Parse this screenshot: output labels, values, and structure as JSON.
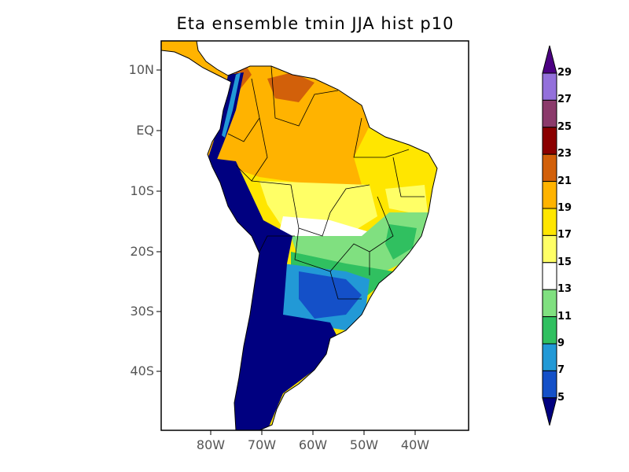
{
  "title": "Eta ensemble tmin JJA hist p10",
  "map": {
    "lat_labels": [
      "10N",
      "EQ",
      "10S",
      "20S",
      "30S",
      "40S"
    ],
    "lon_labels": [
      "80W",
      "70W",
      "60W",
      "50W",
      "40W"
    ]
  },
  "colorbar": {
    "labels": [
      "29",
      "27",
      "25",
      "23",
      "21",
      "19",
      "17",
      "15",
      "13",
      "11",
      "9",
      "7",
      "5"
    ],
    "colors_top_to_bottom": [
      "#4b0082",
      "#9370db",
      "#8b3a6b",
      "#8b0000",
      "#d2600a",
      "#ffb300",
      "#ffe600",
      "#ffff66",
      "#ffffff",
      "#80e080",
      "#30c060",
      "#2299d6",
      "#1450c8",
      "#000080"
    ]
  }
}
